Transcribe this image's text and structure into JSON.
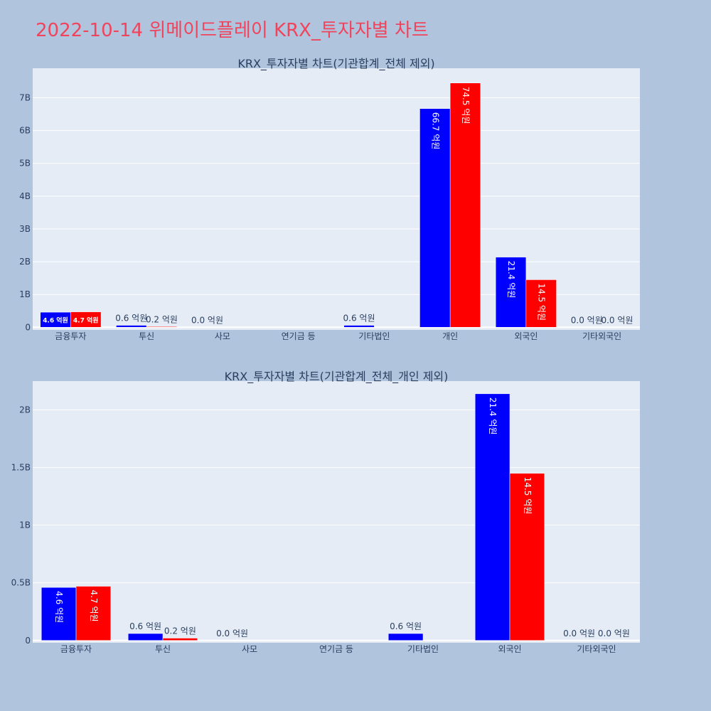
{
  "title": "2022-10-14 위메이드플레이 KRX_투자자별 차트",
  "colors": {
    "background": "#b0c4de",
    "plot_bg": "#e5ecf6",
    "title": "#f0445c",
    "series_a": "#0000ff",
    "series_b": "#ff0000"
  },
  "chart_data": [
    {
      "type": "bar",
      "title": "KRX_투자자별 차트(기관합계_전체 제외)",
      "categories": [
        "금융투자",
        "투신",
        "사모",
        "연기금 등",
        "기타법인",
        "개인",
        "외국인",
        "기타외국인"
      ],
      "series": [
        {
          "values": [
            460000000,
            60000000,
            0,
            0,
            60000000,
            6670000000,
            2140000000,
            0
          ],
          "labels": [
            "4.6 억원",
            "0.6 억원",
            "0.0 억원",
            "",
            "0.6 억원",
            "66.7 억원",
            "21.4 억원",
            "0.0 억원"
          ]
        },
        {
          "values": [
            470000000,
            20000000,
            0,
            0,
            0,
            7450000000,
            1450000000,
            0
          ],
          "labels": [
            "4.7 억원",
            "0.2 억원",
            "",
            "",
            "",
            "74.5 억원",
            "14.5 억원",
            "0.0 억원"
          ]
        }
      ],
      "y_ticks": [
        {
          "v": 0,
          "t": "0"
        },
        {
          "v": 1000000000,
          "t": "1B"
        },
        {
          "v": 2000000000,
          "t": "2B"
        },
        {
          "v": 3000000000,
          "t": "3B"
        },
        {
          "v": 4000000000,
          "t": "4B"
        },
        {
          "v": 5000000000,
          "t": "5B"
        },
        {
          "v": 6000000000,
          "t": "6B"
        },
        {
          "v": 7000000000,
          "t": "7B"
        }
      ],
      "ylim": [
        -80000000,
        7900000000
      ],
      "grid": true
    },
    {
      "type": "bar",
      "title": "KRX_투자자별 차트(기관합계_전체_개인 제외)",
      "categories": [
        "금융투자",
        "투신",
        "사모",
        "연기금 등",
        "기타법인",
        "외국인",
        "기타외국인"
      ],
      "series": [
        {
          "values": [
            460000000,
            60000000,
            0,
            0,
            60000000,
            2140000000,
            0
          ],
          "labels": [
            "4.6 억원",
            "0.6 억원",
            "0.0 억원",
            "",
            "0.6 억원",
            "21.4 억원",
            "0.0 억원"
          ]
        },
        {
          "values": [
            470000000,
            20000000,
            0,
            0,
            0,
            1450000000,
            0
          ],
          "labels": [
            "4.7 억원",
            "0.2 억원",
            "",
            "",
            "",
            "14.5 억원",
            "0.0 억원"
          ]
        }
      ],
      "y_ticks": [
        {
          "v": 0,
          "t": "0"
        },
        {
          "v": 500000000,
          "t": "0.5B"
        },
        {
          "v": 1000000000,
          "t": "1B"
        },
        {
          "v": 1500000000,
          "t": "1.5B"
        },
        {
          "v": 2000000000,
          "t": "2B"
        }
      ],
      "ylim": [
        -20000000,
        2250000000
      ],
      "grid": true
    }
  ]
}
